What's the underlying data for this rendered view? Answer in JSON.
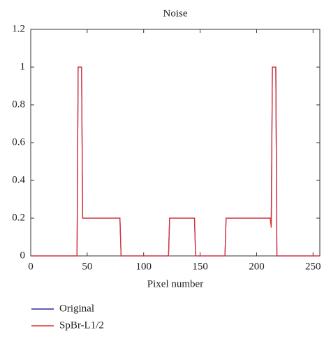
{
  "chart_data": {
    "type": "line",
    "title": "Noise",
    "x_label": "Pixel number",
    "x": [
      0,
      41,
      42,
      45,
      46,
      79,
      80,
      122,
      123,
      145,
      146,
      172,
      173,
      212,
      213,
      214,
      217,
      218,
      256
    ],
    "series": [
      {
        "name": "Original",
        "color": "#2a2a9c",
        "values": [
          0,
          0,
          1,
          1,
          0.2,
          0.2,
          0,
          0,
          0.2,
          0.2,
          0,
          0,
          0.2,
          0.2,
          0.2,
          1,
          1,
          0,
          0
        ]
      },
      {
        "name": "SpBr-L1/2",
        "color": "#e03030",
        "values": [
          0,
          0,
          1,
          1,
          0.2,
          0.2,
          0,
          0,
          0.2,
          0.2,
          0,
          0,
          0.2,
          0.2,
          0.15,
          1,
          1,
          0,
          0
        ]
      }
    ],
    "xlim": [
      0,
      256
    ],
    "xticks": [
      0,
      50,
      100,
      150,
      200,
      250
    ],
    "ylim": [
      0,
      1.2
    ],
    "yticks": [
      0,
      0.2,
      0.4,
      0.6,
      0.8,
      1,
      1.2
    ]
  }
}
